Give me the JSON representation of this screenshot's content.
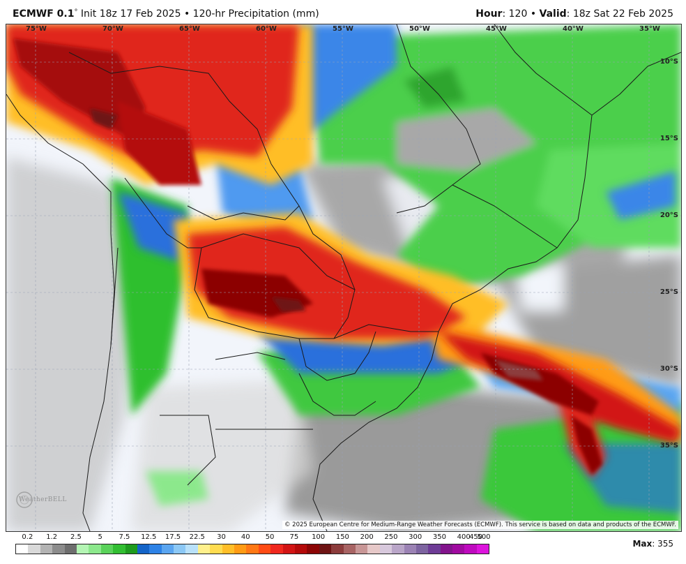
{
  "header": {
    "model": "ECMWF 0.1",
    "degree_symbol": "°",
    "init_text": "Init 18z 17 Feb 2025",
    "bullet": "•",
    "product": "120-hr Precipitation (mm)",
    "hour_label": "Hour",
    "hour_value": "120",
    "valid_label": "Valid",
    "valid_value": "18z Sat 22 Feb 2025"
  },
  "map": {
    "longitude_labels": [
      "75°W",
      "70°W",
      "65°W",
      "60°W",
      "55°W",
      "50°W",
      "45°W",
      "40°W",
      "35°W"
    ],
    "latitude_labels": [
      "10°S",
      "15°S",
      "20°S",
      "25°S",
      "30°S",
      "35°S"
    ],
    "copyright": "© 2025 European Centre for Medium-Range Weather Forecasts (ECMWF). This service is based on data and products of the ECMWF.",
    "watermark": "WeatherBELL",
    "colors": {
      "ocean_background": "#f2f5fb",
      "light_gray": "#c8c8c8",
      "mid_gray": "#9a9a9a",
      "dark_gray": "#707070",
      "green_light": "#90ee90",
      "green": "#3cc83c",
      "green_dark": "#1e9b1e",
      "blue": "#2a6fdc",
      "blue_light": "#7ab8f5",
      "yellow": "#f5e66e",
      "orange": "#f59a23",
      "red": "#e0281e",
      "dark_red": "#a50a0a",
      "maroon": "#6a1010"
    }
  },
  "legend": {
    "labels": [
      "0.2",
      "1.2",
      "2.5",
      "5",
      "7.5",
      "12.5",
      "17.5",
      "22.5",
      "30",
      "40",
      "50",
      "75",
      "100",
      "150",
      "200",
      "250",
      "300",
      "350",
      "400",
      "450",
      "500"
    ],
    "colors": [
      "#ffffff",
      "#d9d9d9",
      "#b3b3b3",
      "#8c8c8c",
      "#6e6e6e",
      "#b4f5b4",
      "#8ce88c",
      "#5ad25a",
      "#32be32",
      "#1e9b1e",
      "#1464c8",
      "#2d82e6",
      "#5aa5f0",
      "#8cc8f5",
      "#b9e1fa",
      "#fff08c",
      "#ffdc50",
      "#ffbe28",
      "#ff9b14",
      "#ff7814",
      "#ff4b14",
      "#f0281e",
      "#d21414",
      "#b40a0a",
      "#8c0505",
      "#6e1414",
      "#8c3c3c",
      "#a86464",
      "#c89696",
      "#e6c8c8",
      "#d7c8dc",
      "#b9a5c8",
      "#9b82b4",
      "#7d64a0",
      "#6e3c96",
      "#82148c",
      "#a00aa0",
      "#be0abe",
      "#dc14dc"
    ]
  },
  "max": {
    "label": "Max",
    "value": "355"
  }
}
